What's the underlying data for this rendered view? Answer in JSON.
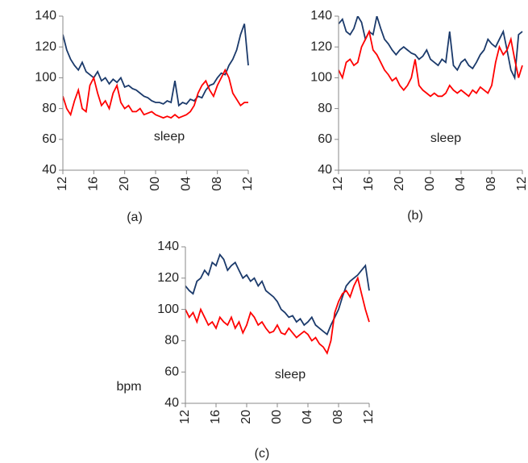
{
  "chart_data": [
    {
      "type": "line",
      "caption": "(a)",
      "annotation": "sleep",
      "x": [
        0,
        0.5,
        1,
        1.5,
        2,
        2.5,
        3,
        3.5,
        4,
        4.5,
        5,
        5.5,
        6,
        6.5,
        7,
        7.5,
        8,
        8.5,
        9,
        9.5,
        10,
        10.5,
        11,
        11.5,
        12,
        12.5,
        13,
        13.5,
        14,
        14.5,
        15,
        15.5,
        16,
        16.5,
        17,
        17.5,
        18,
        18.5,
        19,
        19.5,
        20,
        20.5,
        21,
        21.5,
        22,
        22.5,
        23,
        23.5,
        24
      ],
      "series": [
        {
          "color": "#1b3a6b",
          "values": [
            128,
            118,
            112,
            108,
            105,
            110,
            104,
            102,
            100,
            104,
            98,
            100,
            96,
            99,
            97,
            100,
            94,
            95,
            93,
            92,
            90,
            88,
            87,
            85,
            84,
            84,
            83,
            85,
            84,
            98,
            82,
            84,
            83,
            86,
            85,
            88,
            87,
            92,
            95,
            96,
            100,
            103,
            102,
            108,
            112,
            118,
            128,
            135,
            108
          ]
        },
        {
          "color": "#ff0000",
          "values": [
            88,
            80,
            76,
            85,
            92,
            80,
            78,
            95,
            100,
            90,
            82,
            85,
            80,
            90,
            95,
            84,
            80,
            82,
            78,
            78,
            80,
            76,
            77,
            78,
            76,
            75,
            74,
            75,
            74,
            76,
            74,
            75,
            76,
            78,
            82,
            90,
            95,
            98,
            92,
            88,
            95,
            100,
            105,
            100,
            90,
            86,
            82,
            84,
            84
          ]
        }
      ],
      "xlim": [
        0,
        24
      ],
      "ylim": [
        40,
        140
      ],
      "xticks": [
        {
          "value": 0,
          "label": "12"
        },
        {
          "value": 4,
          "label": "16"
        },
        {
          "value": 8,
          "label": "20"
        },
        {
          "value": 12,
          "label": "00"
        },
        {
          "value": 16,
          "label": "04"
        },
        {
          "value": 20,
          "label": "08"
        },
        {
          "value": 24,
          "label": "12"
        }
      ],
      "yticks": [
        40,
        60,
        80,
        100,
        120,
        140
      ]
    },
    {
      "type": "line",
      "caption": "(b)",
      "annotation": "sleep",
      "x": [
        0,
        0.5,
        1,
        1.5,
        2,
        2.5,
        3,
        3.5,
        4,
        4.5,
        5,
        5.5,
        6,
        6.5,
        7,
        7.5,
        8,
        8.5,
        9,
        9.5,
        10,
        10.5,
        11,
        11.5,
        12,
        12.5,
        13,
        13.5,
        14,
        14.5,
        15,
        15.5,
        16,
        16.5,
        17,
        17.5,
        18,
        18.5,
        19,
        19.5,
        20,
        20.5,
        21,
        21.5,
        22,
        22.5,
        23,
        23.5,
        24
      ],
      "series": [
        {
          "color": "#1b3a6b",
          "values": [
            135,
            138,
            130,
            128,
            132,
            140,
            136,
            125,
            130,
            128,
            140,
            132,
            125,
            122,
            118,
            115,
            118,
            120,
            118,
            116,
            115,
            112,
            114,
            118,
            112,
            110,
            108,
            112,
            110,
            130,
            108,
            105,
            110,
            112,
            108,
            106,
            110,
            115,
            118,
            125,
            122,
            120,
            125,
            130,
            118,
            105,
            100,
            128,
            130
          ]
        },
        {
          "color": "#ff0000",
          "values": [
            105,
            100,
            110,
            112,
            108,
            110,
            120,
            125,
            130,
            118,
            115,
            110,
            105,
            102,
            98,
            100,
            95,
            92,
            95,
            100,
            112,
            95,
            92,
            90,
            88,
            90,
            88,
            88,
            90,
            95,
            92,
            90,
            92,
            90,
            88,
            92,
            90,
            94,
            92,
            90,
            95,
            110,
            120,
            115,
            118,
            125,
            112,
            100,
            108
          ]
        }
      ],
      "xlim": [
        0,
        24
      ],
      "ylim": [
        40,
        140
      ],
      "xticks": [
        {
          "value": 0,
          "label": "12"
        },
        {
          "value": 4,
          "label": "16"
        },
        {
          "value": 8,
          "label": "20"
        },
        {
          "value": 12,
          "label": "00"
        },
        {
          "value": 16,
          "label": "04"
        },
        {
          "value": 20,
          "label": "08"
        },
        {
          "value": 24,
          "label": "12"
        }
      ],
      "yticks": [
        40,
        60,
        80,
        100,
        120,
        140
      ]
    },
    {
      "type": "line",
      "caption": "(c)",
      "annotation": "sleep",
      "y_label": "bpm",
      "x": [
        0,
        0.5,
        1,
        1.5,
        2,
        2.5,
        3,
        3.5,
        4,
        4.5,
        5,
        5.5,
        6,
        6.5,
        7,
        7.5,
        8,
        8.5,
        9,
        9.5,
        10,
        10.5,
        11,
        11.5,
        12,
        12.5,
        13,
        13.5,
        14,
        14.5,
        15,
        15.5,
        16,
        16.5,
        17,
        17.5,
        18,
        18.5,
        19,
        19.5,
        20,
        20.5,
        21,
        21.5,
        22,
        22.5,
        23,
        23.5,
        24
      ],
      "series": [
        {
          "color": "#1b3a6b",
          "values": [
            115,
            112,
            110,
            118,
            120,
            125,
            122,
            130,
            128,
            135,
            132,
            125,
            128,
            130,
            125,
            120,
            122,
            118,
            120,
            115,
            118,
            112,
            110,
            108,
            105,
            100,
            98,
            95,
            96,
            92,
            94,
            90,
            92,
            95,
            90,
            88,
            86,
            84,
            90,
            95,
            100,
            108,
            115,
            118,
            120,
            122,
            125,
            128,
            112
          ]
        },
        {
          "color": "#ff0000",
          "values": [
            100,
            95,
            98,
            92,
            100,
            95,
            90,
            92,
            88,
            95,
            92,
            90,
            95,
            88,
            92,
            85,
            90,
            98,
            95,
            90,
            92,
            88,
            85,
            86,
            90,
            85,
            84,
            88,
            85,
            82,
            84,
            86,
            84,
            80,
            82,
            78,
            76,
            72,
            80,
            98,
            105,
            110,
            112,
            108,
            115,
            120,
            110,
            100,
            92
          ]
        }
      ],
      "xlim": [
        0,
        24
      ],
      "ylim": [
        40,
        140
      ],
      "xticks": [
        {
          "value": 0,
          "label": "12"
        },
        {
          "value": 4,
          "label": "16"
        },
        {
          "value": 8,
          "label": "20"
        },
        {
          "value": 12,
          "label": "00"
        },
        {
          "value": 16,
          "label": "04"
        },
        {
          "value": 20,
          "label": "08"
        },
        {
          "value": 24,
          "label": "12"
        }
      ],
      "yticks": [
        40,
        60,
        80,
        100,
        120,
        140
      ]
    }
  ]
}
